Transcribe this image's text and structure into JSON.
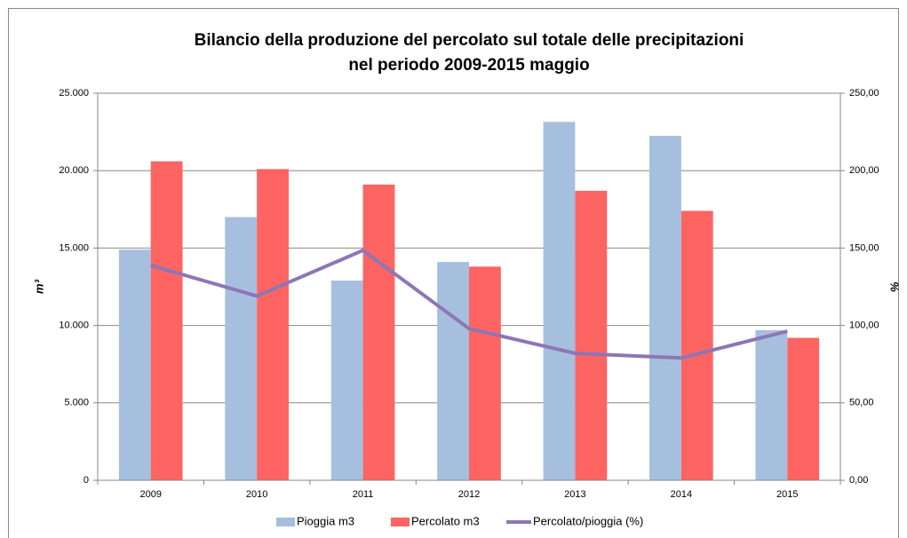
{
  "chart_data": {
    "type": "bar-line",
    "title": [
      "Bilancio della produzione del percolato sul totale delle precipitazioni",
      "nel periodo 2009-2015 maggio"
    ],
    "y_label": "m³",
    "y2_label": "%",
    "categories": [
      "2009",
      "2010",
      "2011",
      "2012",
      "2013",
      "2014",
      "2015"
    ],
    "series": [
      {
        "name": "Pioggia m3",
        "type": "bar",
        "color": "#a6bfdf",
        "values": [
          14900,
          17000,
          12900,
          14100,
          23150,
          22250,
          9700
        ]
      },
      {
        "name": "Percolato m3",
        "type": "bar",
        "color": "#fd6462",
        "values": [
          20600,
          20100,
          19100,
          13800,
          18700,
          17400,
          9200
        ]
      },
      {
        "name": "Percolato/pioggia (%)",
        "type": "line",
        "axis": "y2",
        "color": "#8d76b6",
        "values": [
          138.8,
          119,
          148.5,
          98,
          82,
          79,
          96.3
        ]
      }
    ],
    "ylim": [
      0,
      25000
    ],
    "yticks": [
      0,
      {
        "value": 5000,
        "label": "5.000"
      },
      {
        "value": 10000,
        "label": "10.000"
      },
      {
        "value": 15000,
        "label": "15.000"
      },
      {
        "value": 20000,
        "label": "20.000"
      },
      {
        "value": 25000,
        "label": "25.000"
      }
    ],
    "y2lim": [
      0,
      250
    ],
    "y2ticks": [
      {
        "value": 0,
        "label": "0,00"
      },
      {
        "value": 50,
        "label": "50,00"
      },
      {
        "value": 100,
        "label": "100,00"
      },
      {
        "value": 150,
        "label": "150,00"
      },
      {
        "value": 200,
        "label": "200,00"
      },
      {
        "value": 250,
        "label": "250,00"
      }
    ],
    "grid": true
  }
}
